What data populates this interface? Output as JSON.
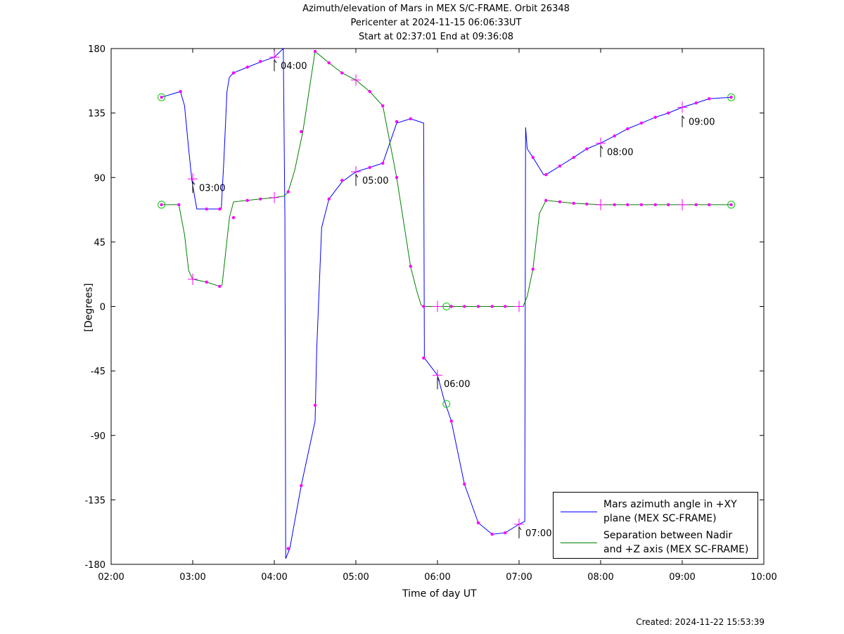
{
  "title": {
    "line1": "Azimuth/elevation of Mars in MEX S/C-FRAME.  Orbit 26348",
    "line2": "Pericenter at 2024-11-15 06:06:33UT",
    "line3": "Start at 02:37:01 End at 09:36:08"
  },
  "footer": {
    "created": "Created: 2024-11-22 15:53:39"
  },
  "legend": {
    "azimuth": {
      "line1": "Mars azimuth angle in +XY",
      "line2": "plane (MEX SC-FRAME)"
    },
    "separation": {
      "line1": "Separation between Nadir",
      "line2": "and +Z axis (MEX SC-FRAME)"
    }
  },
  "chart_data": {
    "type": "line",
    "xlabel": "Time of day UT",
    "ylabel": "[Degrees]",
    "xlim": [
      2.0,
      10.0
    ],
    "ylim": [
      -180,
      180
    ],
    "x_ticks": [
      "02:00",
      "03:00",
      "04:00",
      "05:00",
      "06:00",
      "07:00",
      "08:00",
      "09:00",
      "10:00"
    ],
    "y_ticks": [
      "180",
      "135",
      "90",
      "45",
      "0",
      "-45",
      "-90",
      "-135",
      "-180"
    ],
    "grid": false,
    "legend_position": "bottom-right",
    "colors": {
      "azimuth": "#0000ff",
      "separation": "#008000",
      "marker": "#ff00ff",
      "endpoint": "#00cc00"
    },
    "series": [
      {
        "name": "Mars azimuth angle in +XY plane (MEX SC-FRAME)",
        "color": "#0000ff",
        "x": [
          2.617,
          2.85,
          2.9,
          2.95,
          2.99,
          3.05,
          3.1,
          3.35,
          3.38,
          3.42,
          3.45,
          3.5,
          3.67,
          3.85,
          4.0,
          4.11,
          4.13,
          4.14,
          4.19,
          4.33,
          4.5,
          4.52,
          4.58,
          4.67,
          4.83,
          5.0,
          5.17,
          5.33,
          5.5,
          5.67,
          5.83,
          5.84,
          6.0,
          6.08,
          6.17,
          6.33,
          6.5,
          6.67,
          6.83,
          7.0,
          7.07,
          7.08,
          7.1,
          7.17,
          7.3,
          7.33,
          7.5,
          7.67,
          7.83,
          8.0,
          8.17,
          8.33,
          8.5,
          8.67,
          8.83,
          9.0,
          9.17,
          9.33,
          9.6
        ],
        "y": [
          146,
          150,
          140,
          110,
          88,
          68,
          68,
          68,
          100,
          150,
          160,
          163,
          167,
          171,
          174,
          180,
          60,
          -176,
          -169,
          -125,
          -80,
          -30,
          55,
          75,
          87,
          94,
          97,
          100,
          128,
          131,
          128,
          -36,
          -48,
          -65,
          -80,
          -124,
          -151,
          -159,
          -158,
          -152,
          -150,
          125,
          110,
          104,
          92,
          92,
          98,
          104,
          110,
          114,
          119,
          124,
          128,
          132,
          135,
          139,
          142,
          145,
          146
        ],
        "markers_x": [
          2.617,
          2.85,
          3.0,
          3.17,
          3.33,
          3.5,
          3.67,
          3.83,
          4.0,
          4.17,
          4.33,
          4.5,
          4.67,
          4.83,
          5.0,
          5.17,
          5.33,
          5.5,
          5.67,
          5.83,
          6.0,
          6.17,
          6.33,
          6.5,
          6.67,
          6.83,
          7.0,
          7.17,
          7.33,
          7.5,
          7.67,
          7.83,
          8.0,
          8.17,
          8.33,
          8.5,
          8.67,
          8.83,
          9.0,
          9.17,
          9.33,
          9.6
        ],
        "markers_y": [
          146,
          150,
          89,
          68,
          68,
          163,
          167,
          171,
          174,
          -169,
          -125,
          -69,
          75,
          88,
          94,
          97,
          100,
          129,
          131,
          -36,
          -48,
          -80,
          -124,
          -151,
          -159,
          -158,
          -152,
          104,
          92,
          98,
          104,
          110,
          114,
          119,
          124,
          128,
          132,
          135,
          139,
          142,
          145,
          146
        ]
      },
      {
        "name": "Separation between Nadir and +Z axis (MEX SC-FRAME)",
        "color": "#008000",
        "x": [
          2.617,
          2.83,
          2.9,
          2.95,
          3.0,
          3.17,
          3.33,
          3.36,
          3.45,
          3.5,
          3.67,
          3.83,
          4.0,
          4.12,
          4.17,
          4.25,
          4.35,
          4.5,
          4.67,
          4.83,
          5.0,
          5.17,
          5.33,
          5.5,
          5.67,
          5.75,
          5.8,
          5.83,
          6.0,
          6.17,
          6.33,
          6.5,
          6.67,
          6.83,
          7.0,
          7.05,
          7.1,
          7.17,
          7.25,
          7.33,
          7.5,
          7.67,
          7.83,
          8.0,
          8.17,
          8.33,
          8.5,
          8.67,
          8.83,
          9.0,
          9.17,
          9.33,
          9.6
        ],
        "y": [
          71,
          71,
          50,
          25,
          19,
          17,
          14,
          15,
          62,
          73,
          74,
          75,
          76,
          77,
          80,
          95,
          122,
          178,
          170,
          163,
          158,
          150,
          140,
          90,
          28,
          10,
          1,
          0,
          0,
          0,
          0,
          0,
          0,
          0,
          0,
          0,
          7,
          26,
          65,
          74,
          73,
          72,
          71.5,
          71,
          71,
          71,
          71,
          71,
          71,
          71,
          71,
          71,
          71
        ],
        "markers_x": [
          2.617,
          2.83,
          3.0,
          3.17,
          3.33,
          3.5,
          3.67,
          3.83,
          4.0,
          4.17,
          4.33,
          4.5,
          4.67,
          4.83,
          5.0,
          5.17,
          5.33,
          5.5,
          5.67,
          5.83,
          6.0,
          6.17,
          6.33,
          6.5,
          6.67,
          6.83,
          7.0,
          7.17,
          7.33,
          7.5,
          7.67,
          7.83,
          8.0,
          8.17,
          8.33,
          8.5,
          8.67,
          8.83,
          9.0,
          9.17,
          9.33,
          9.6
        ],
        "markers_y": [
          71,
          71,
          19,
          17,
          14,
          62,
          74,
          75,
          76,
          80,
          122,
          178,
          170,
          163,
          158,
          150,
          140,
          90,
          28,
          0,
          0,
          0,
          0,
          0,
          0,
          0,
          0,
          26,
          74,
          73,
          72,
          71.5,
          71,
          71,
          71,
          71,
          71,
          71,
          71,
          71,
          71,
          71
        ]
      }
    ],
    "annotations": [
      {
        "text": "03:00",
        "x": 3.0,
        "y": 89
      },
      {
        "text": "04:00",
        "x": 4.0,
        "y": 174
      },
      {
        "text": "05:00",
        "x": 5.0,
        "y": 94
      },
      {
        "text": "06:00",
        "x": 6.0,
        "y": -48
      },
      {
        "text": "07:00",
        "x": 7.0,
        "y": -152
      },
      {
        "text": "08:00",
        "x": 8.0,
        "y": 114
      },
      {
        "text": "09:00",
        "x": 9.0,
        "y": 135
      }
    ],
    "endpoint_circles": [
      {
        "x": 2.617,
        "y": 146
      },
      {
        "x": 9.6,
        "y": 146
      },
      {
        "x": 2.617,
        "y": 71
      },
      {
        "x": 9.6,
        "y": 71
      },
      {
        "x": 6.11,
        "y": 0
      },
      {
        "x": 6.11,
        "y": -68
      }
    ]
  }
}
